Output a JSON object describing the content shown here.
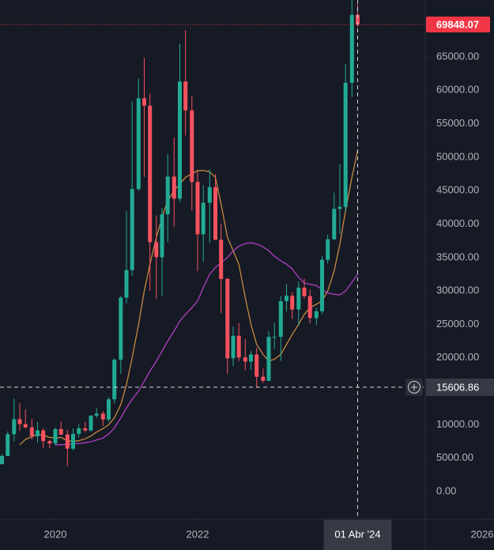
{
  "chart_data": {
    "type": "candlestick",
    "x": [
      2019.25,
      2019.33,
      2019.42,
      2019.5,
      2019.58,
      2019.67,
      2019.75,
      2019.83,
      2019.92,
      2020,
      2020.08,
      2020.17,
      2020.25,
      2020.33,
      2020.42,
      2020.5,
      2020.58,
      2020.67,
      2020.75,
      2020.83,
      2020.92,
      2021,
      2021.08,
      2021.17,
      2021.25,
      2021.33,
      2021.42,
      2021.5,
      2021.58,
      2021.67,
      2021.75,
      2021.83,
      2021.92,
      2022,
      2022.08,
      2022.17,
      2022.25,
      2022.33,
      2022.42,
      2022.5,
      2022.58,
      2022.67,
      2022.75,
      2022.83,
      2022.92,
      2023,
      2023.08,
      2023.17,
      2023.25,
      2023.33,
      2023.42,
      2023.5,
      2023.58,
      2023.67,
      2023.75,
      2023.83,
      2023.92,
      2024,
      2024.08,
      2024.17,
      2024.25
    ],
    "open": [
      4100,
      5330,
      8570,
      10820,
      10080,
      9600,
      8290,
      9150,
      7550,
      7190,
      9350,
      8520,
      6410,
      8620,
      9450,
      9140,
      11350,
      11650,
      10780,
      13800,
      19700,
      28990,
      33110,
      45240,
      58800,
      57700,
      37300,
      35040,
      41460,
      47100,
      43790,
      61320,
      57000,
      46300,
      38480,
      43190,
      45530,
      37640,
      31790,
      19930,
      23300,
      20050,
      19430,
      20490,
      17170,
      16550,
      23130,
      23140,
      28470,
      29270,
      27220,
      30480,
      29230,
      25940,
      26960,
      34650,
      37720,
      42280,
      42580,
      61130,
      71290
    ],
    "high": [
      5600,
      9000,
      13900,
      13200,
      12300,
      10900,
      10400,
      9500,
      7750,
      9570,
      10500,
      9190,
      9460,
      10070,
      10400,
      11450,
      12480,
      12050,
      14100,
      19900,
      29300,
      41950,
      58350,
      61780,
      64850,
      59500,
      41300,
      42400,
      50500,
      52900,
      67000,
      69000,
      59100,
      47990,
      45850,
      48200,
      47450,
      40050,
      31990,
      24670,
      25200,
      22800,
      20990,
      21480,
      18390,
      23960,
      25250,
      29190,
      31000,
      29820,
      31430,
      31860,
      30190,
      27480,
      35200,
      38420,
      44700,
      48970,
      63900,
      73800,
      72800
    ],
    "low": [
      4050,
      5330,
      7500,
      9100,
      9400,
      7800,
      7300,
      6500,
      6450,
      6860,
      8450,
      3800,
      6150,
      8110,
      8900,
      8950,
      10990,
      9820,
      10400,
      13200,
      17600,
      28130,
      32300,
      45000,
      47050,
      30000,
      28800,
      29300,
      37330,
      39600,
      43300,
      53250,
      42000,
      32950,
      34320,
      37170,
      37690,
      26700,
      17600,
      18780,
      19520,
      18150,
      18190,
      15480,
      16260,
      16500,
      21350,
      19550,
      26940,
      25810,
      24800,
      28860,
      25160,
      24930,
      26560,
      34100,
      37640,
      38560,
      41900,
      59000,
      69500
    ],
    "close": [
      5330,
      8570,
      10820,
      10080,
      9600,
      8290,
      9150,
      7550,
      7190,
      9350,
      8520,
      6410,
      8620,
      9450,
      9140,
      11350,
      11650,
      10780,
      13800,
      19700,
      28990,
      33110,
      45240,
      58800,
      57700,
      37300,
      35040,
      41460,
      47100,
      43790,
      61320,
      57000,
      46300,
      38480,
      43190,
      45530,
      37640,
      31790,
      19930,
      23300,
      20050,
      19430,
      20490,
      17170,
      16550,
      23130,
      23140,
      28470,
      29270,
      27220,
      30480,
      29230,
      25940,
      26960,
      34650,
      37720,
      42280,
      42580,
      61130,
      71290,
      69848.07
    ],
    "up_color": "#22ab94",
    "down_color": "#f7525f",
    "series": [
      {
        "color": "#c6893f",
        "values": [
          null,
          null,
          null,
          7000,
          7800,
          8200,
          8500,
          8400,
          8100,
          8000,
          8100,
          7600,
          7500,
          7600,
          7900,
          8300,
          8900,
          9400,
          10000,
          11000,
          13000,
          16000,
          20000,
          25000,
          30000,
          34000,
          38000,
          41000,
          43500,
          45000,
          46000,
          47000,
          47500,
          48000,
          48000,
          47800,
          47000,
          43000,
          38000,
          36000,
          34000,
          29000,
          25000,
          22000,
          20500,
          19500,
          19800,
          20500,
          22000,
          23500,
          25000,
          26500,
          27500,
          28000,
          28500,
          30000,
          33000,
          37000,
          42000,
          47000,
          51000
        ]
      },
      {
        "color": "#b03fc4",
        "values": [
          null,
          null,
          null,
          null,
          null,
          null,
          null,
          null,
          null,
          7000,
          7000,
          7050,
          7100,
          7200,
          7300,
          7450,
          7700,
          8000,
          8600,
          9500,
          11000,
          12500,
          13800,
          15000,
          16500,
          18000,
          19500,
          21000,
          22500,
          24000,
          25500,
          26500,
          27500,
          28500,
          30500,
          32500,
          33500,
          34200,
          35000,
          36000,
          36700,
          37100,
          37200,
          37000,
          36600,
          36000,
          35200,
          34500,
          34000,
          33300,
          32000,
          31200,
          31000,
          30800,
          30200,
          29700,
          29500,
          29400,
          30000,
          31300,
          32500
        ]
      }
    ],
    "xlim": [
      2019.222,
      2026.167
    ],
    "xticks": [
      2020,
      2022,
      2026
    ],
    "ylim": [
      -4136,
      73509
    ],
    "yticks": [
      {
        "value": 0,
        "label": "0.00"
      },
      {
        "value": 5000,
        "label": "5000.00"
      },
      {
        "value": 10000,
        "label": "10000.00"
      },
      {
        "value": 15000,
        "label": "15000.00"
      },
      {
        "value": 20000,
        "label": "20000.00"
      },
      {
        "value": 25000,
        "label": "25000.00"
      },
      {
        "value": 30000,
        "label": "30000.00"
      },
      {
        "value": 35000,
        "label": "35000.00"
      },
      {
        "value": 40000,
        "label": "40000.00"
      },
      {
        "value": 45000,
        "label": "45000.00"
      },
      {
        "value": 50000,
        "label": "50000.00"
      },
      {
        "value": 55000,
        "label": "55000.00"
      },
      {
        "value": 60000,
        "label": "60000.00"
      },
      {
        "value": 65000,
        "label": "65000.00"
      }
    ],
    "last_price": 69848.07,
    "last_price_color": "#f23645",
    "crosshair": {
      "x": 2024.25,
      "x_label": "01 Abr '24",
      "y": 15606.86
    }
  }
}
